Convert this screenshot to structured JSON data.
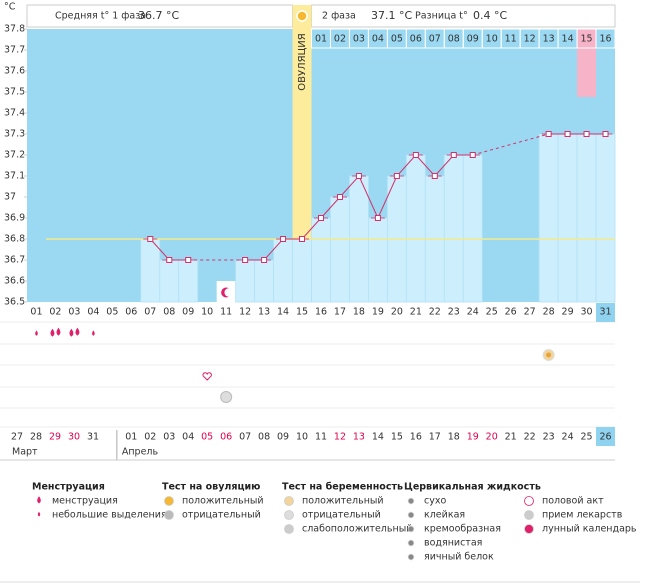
{
  "chart_data": {
    "type": "bbt",
    "y_axis_label": "°C",
    "header": {
      "phase1": "Средняя t° 1 фаза",
      "phase1_value": "36.7 °C",
      "phase2": "2 фаза",
      "phase2_value": "37.1 °C",
      "difference": "Разница t°",
      "difference_value": "0.4 °C"
    },
    "ovulation_label": "ОВУЛЯЦИЯ",
    "categories": [
      "01",
      "02",
      "03",
      "04",
      "05",
      "06",
      "07",
      "08",
      "09",
      "10",
      "11",
      "12",
      "13",
      "14",
      "15",
      "16",
      "17",
      "18",
      "19",
      "20",
      "21",
      "22",
      "23",
      "24",
      "25",
      "26",
      "27",
      "28",
      "29",
      "30",
      "31"
    ],
    "phase2_days": [
      "01",
      "02",
      "03",
      "04",
      "05",
      "06",
      "07",
      "08",
      "09",
      "10",
      "11",
      "12",
      "13",
      "14",
      "15",
      "16"
    ],
    "values": [
      null,
      null,
      null,
      null,
      null,
      null,
      36.8,
      36.7,
      36.7,
      null,
      null,
      36.7,
      36.7,
      36.8,
      36.8,
      36.9,
      37.0,
      37.1,
      36.9,
      37.1,
      37.2,
      37.1,
      37.2,
      37.2,
      null,
      null,
      null,
      37.3,
      37.3,
      37.3,
      37.3
    ],
    "coverline": 36.8,
    "ylim": [
      36.5,
      37.8
    ],
    "yticks": [
      36.5,
      36.6,
      36.7,
      36.8,
      36.9,
      37,
      37.1,
      37.2,
      37.3,
      37.4,
      37.5,
      37.6,
      37.7,
      37.8
    ],
    "dates": [
      {
        "label": "27",
        "color": "#333333"
      },
      {
        "label": "28",
        "color": "#333333"
      },
      {
        "label": "29",
        "color": "#e0004d"
      },
      {
        "label": "30",
        "color": "#e0004d"
      },
      {
        "label": "31",
        "color": "#333333"
      },
      {
        "label": "01",
        "color": "#333333"
      },
      {
        "label": "02",
        "color": "#333333"
      },
      {
        "label": "03",
        "color": "#333333"
      },
      {
        "label": "04",
        "color": "#333333"
      },
      {
        "label": "05",
        "color": "#e0004d"
      },
      {
        "label": "06",
        "color": "#e0004d"
      },
      {
        "label": "07",
        "color": "#333333"
      },
      {
        "label": "08",
        "color": "#333333"
      },
      {
        "label": "09",
        "color": "#333333"
      },
      {
        "label": "10",
        "color": "#333333"
      },
      {
        "label": "11",
        "color": "#333333"
      },
      {
        "label": "12",
        "color": "#e0004d"
      },
      {
        "label": "13",
        "color": "#e0004d"
      },
      {
        "label": "14",
        "color": "#333333"
      },
      {
        "label": "15",
        "color": "#333333"
      },
      {
        "label": "16",
        "color": "#333333"
      },
      {
        "label": "17",
        "color": "#333333"
      },
      {
        "label": "18",
        "color": "#333333"
      },
      {
        "label": "19",
        "color": "#e0004d"
      },
      {
        "label": "20",
        "color": "#e0004d"
      },
      {
        "label": "21",
        "color": "#333333"
      },
      {
        "label": "22",
        "color": "#333333"
      },
      {
        "label": "23",
        "color": "#333333"
      },
      {
        "label": "24",
        "color": "#333333"
      },
      {
        "label": "25",
        "color": "#333333"
      },
      {
        "label": "26",
        "color": "#333333"
      }
    ],
    "months": [
      "Март",
      "Апрель"
    ],
    "colors": {
      "background": "#9bd9f3",
      "bar": "#cdeefc",
      "line": "#d2306a",
      "coverline": "#f3ea8a",
      "ovulation": "#fcec9c",
      "highlight": "#f7b3c8",
      "today": "#8fd3f0"
    },
    "legend": [
      {
        "title": "Менструация",
        "items": [
          "менструация",
          "небольшие выделения"
        ]
      },
      {
        "title": "Тест на овуляцию",
        "items": [
          "положительный",
          "отрицательный"
        ]
      },
      {
        "title": "Тест на беременность",
        "items": [
          "положительный",
          "отрицательный",
          "слабоположительный"
        ]
      },
      {
        "title": "Цервикальная жидкость",
        "items": [
          "сухо",
          "клейкая",
          "кремообразная",
          "водянистая",
          "яичный белок"
        ]
      },
      {
        "items": [
          "половой акт",
          "прием лекарств",
          "лунный календарь"
        ]
      }
    ]
  }
}
